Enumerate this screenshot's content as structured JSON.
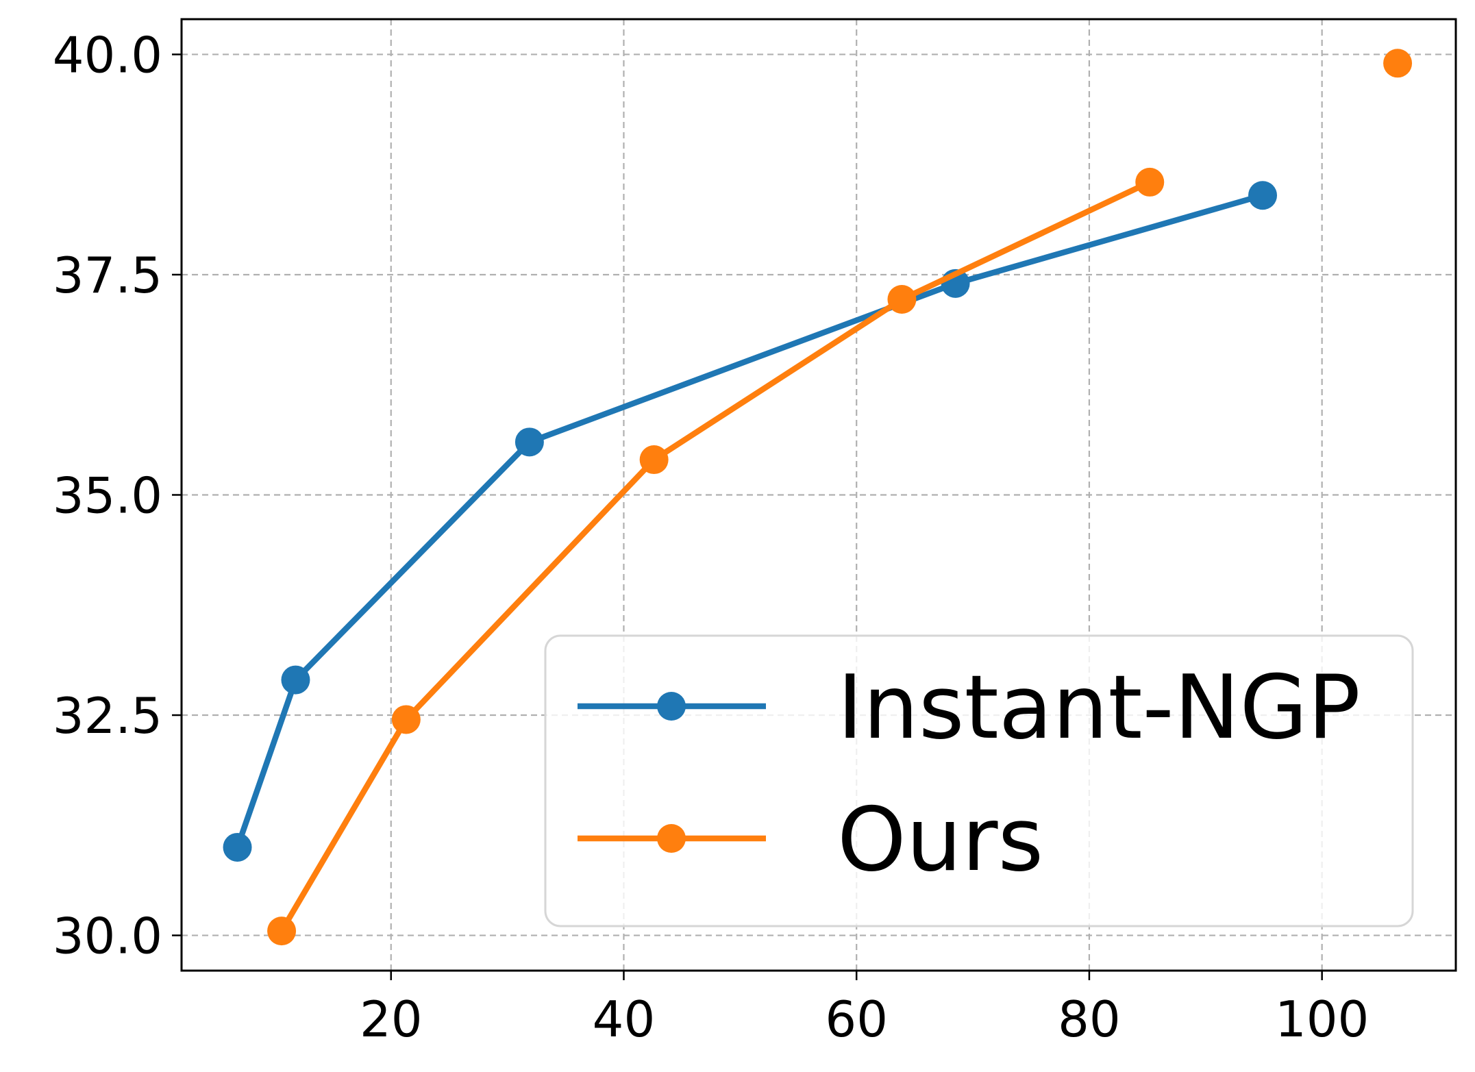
{
  "chart_data": {
    "type": "line",
    "title": "",
    "xlabel": "",
    "ylabel": "",
    "xlim": [
      2.0,
      111.5
    ],
    "ylim": [
      29.6,
      40.4
    ],
    "xticks": [
      {
        "value": 20,
        "label": "20"
      },
      {
        "value": 40,
        "label": "40"
      },
      {
        "value": 60,
        "label": "60"
      },
      {
        "value": 80,
        "label": "80"
      },
      {
        "value": 100,
        "label": "100"
      }
    ],
    "yticks": [
      {
        "value": 30.0,
        "label": "30.0"
      },
      {
        "value": 32.5,
        "label": "32.5"
      },
      {
        "value": 35.0,
        "label": "35.0"
      },
      {
        "value": 37.5,
        "label": "37.5"
      },
      {
        "value": 40.0,
        "label": "40.0"
      }
    ],
    "grid": true,
    "legend": "lower-right",
    "series": [
      {
        "name": "Instant-NGP",
        "color": "#1f77b4",
        "x": [
          6.8,
          11.8,
          31.9,
          68.5,
          94.9
        ],
        "y": [
          31.0,
          32.9,
          35.6,
          37.4,
          38.4
        ]
      },
      {
        "name": "Ours",
        "color": "#ff7f0e",
        "x": [
          10.6,
          21.3,
          42.6,
          63.9,
          85.2
        ],
        "y": [
          30.05,
          32.45,
          35.4,
          37.22,
          38.55
        ]
      },
      {
        "name": "",
        "color": "#ff7f0e",
        "x": [
          106.5
        ],
        "y": [
          39.9
        ]
      }
    ]
  }
}
